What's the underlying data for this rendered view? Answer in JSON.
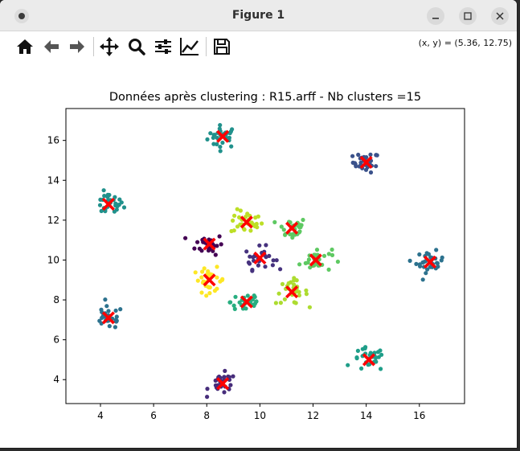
{
  "window": {
    "title": "Figure 1"
  },
  "toolbar": {
    "buttons": [
      {
        "name": "home",
        "icon": "home-icon"
      },
      {
        "name": "back",
        "icon": "arrow-left-icon"
      },
      {
        "name": "forward",
        "icon": "arrow-right-icon"
      },
      {
        "name": "pan",
        "icon": "move-icon"
      },
      {
        "name": "zoom",
        "icon": "magnifier-icon"
      },
      {
        "name": "subplots",
        "icon": "sliders-icon"
      },
      {
        "name": "edit-axis",
        "icon": "line-chart-icon"
      },
      {
        "name": "save",
        "icon": "floppy-disk-icon"
      }
    ],
    "coords": "(x, y) = (5.36, 12.75)"
  },
  "chart_data": {
    "type": "scatter",
    "title": "Données après clustering : R15.arff - Nb clusters =15",
    "xlabel": "",
    "ylabel": "",
    "xlim": [
      2.7,
      17.7
    ],
    "ylim": [
      2.8,
      17.6
    ],
    "xticks": [
      "4",
      "6",
      "8",
      "10",
      "12",
      "14",
      "16"
    ],
    "yticks": [
      "4",
      "6",
      "8",
      "10",
      "12",
      "14",
      "16"
    ],
    "xtick_values": [
      4,
      6,
      8,
      10,
      12,
      14,
      16
    ],
    "ytick_values": [
      4,
      6,
      8,
      10,
      12,
      14,
      16
    ],
    "grid": false,
    "legend": "none",
    "centroid_marker": "x",
    "centroid_color": "#ff0000",
    "clusters": [
      {
        "center": [
          8.6,
          16.2
        ],
        "spread": 0.28,
        "n": 30,
        "color": "#21918c"
      },
      {
        "center": [
          14.0,
          14.9
        ],
        "spread": 0.25,
        "n": 30,
        "color": "#3b528b"
      },
      {
        "center": [
          4.3,
          12.8
        ],
        "spread": 0.28,
        "n": 30,
        "color": "#21918c"
      },
      {
        "center": [
          9.5,
          11.9
        ],
        "spread": 0.3,
        "n": 30,
        "color": "#bddf26"
      },
      {
        "center": [
          11.2,
          11.6
        ],
        "spread": 0.28,
        "n": 30,
        "color": "#5ec962"
      },
      {
        "center": [
          8.1,
          10.8
        ],
        "spread": 0.26,
        "n": 30,
        "color": "#440154"
      },
      {
        "center": [
          10.0,
          10.1
        ],
        "spread": 0.28,
        "n": 30,
        "color": "#46327e"
      },
      {
        "center": [
          12.1,
          10.0
        ],
        "spread": 0.3,
        "n": 30,
        "color": "#5ec962"
      },
      {
        "center": [
          16.4,
          9.9
        ],
        "spread": 0.26,
        "n": 30,
        "color": "#2c728e"
      },
      {
        "center": [
          8.1,
          9.0
        ],
        "spread": 0.3,
        "n": 30,
        "color": "#fde725"
      },
      {
        "center": [
          11.2,
          8.4
        ],
        "spread": 0.3,
        "n": 30,
        "color": "#addc30"
      },
      {
        "center": [
          9.5,
          7.9
        ],
        "spread": 0.3,
        "n": 30,
        "color": "#28ae80"
      },
      {
        "center": [
          4.3,
          7.1
        ],
        "spread": 0.28,
        "n": 30,
        "color": "#2c728e"
      },
      {
        "center": [
          14.1,
          5.0
        ],
        "spread": 0.3,
        "n": 30,
        "color": "#1f9e89"
      },
      {
        "center": [
          8.6,
          3.8
        ],
        "spread": 0.26,
        "n": 30,
        "color": "#472d7b"
      }
    ]
  }
}
